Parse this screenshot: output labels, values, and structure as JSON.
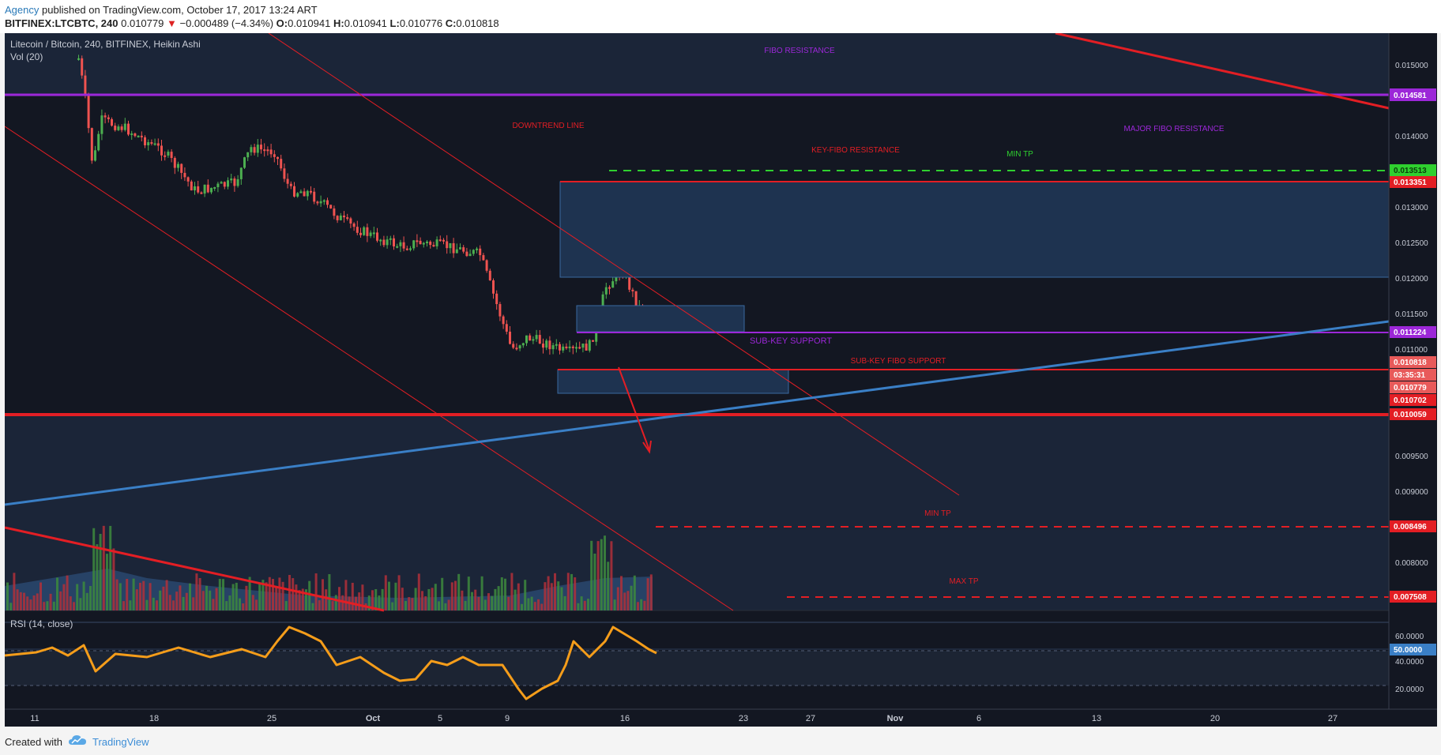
{
  "header": {
    "author": "Agency",
    "published_text": "published on TradingView.com, October 17, 2017 13:24 ART",
    "symbol": "BITFINEX:LTCBTC, 240",
    "last": "0.010779",
    "change_arrow": "▼",
    "change": "−0.000489 (−4.34%)",
    "o_label": "O:",
    "o_value": "0.010941",
    "h_label": "H:",
    "h_value": "0.010941",
    "l_label": "L:",
    "l_value": "0.010776",
    "c_label": "C:",
    "c_value": "0.010818"
  },
  "legend": {
    "title": "Litecoin / Bitcoin, 240, BITFINEX, Heikin Ashi",
    "volume": "Vol (20)",
    "rsi": "RSI (14, close)"
  },
  "annotations": {
    "fibo_resistance": "FIBO RESISTANCE",
    "downtrend_line": "DOWNTREND LINE",
    "key_fibo_resistance": "KEY-FIBO RESISTANCE",
    "min_tp_top": "MIN TP",
    "major_fibo_resistance": "MAJOR FIBO RESISTANCE",
    "sub_key_support": "SUB-KEY SUPPORT",
    "sub_key_fibo_support": "SUB-KEY FIBO SUPPORT",
    "min_tp_bottom": "MIN TP",
    "max_tp": "MAX TP"
  },
  "price_axis": {
    "ticks": [
      "0.015000",
      "0.014000",
      "0.013000",
      "0.012500",
      "0.012000",
      "0.011500",
      "0.011000",
      "0.009500",
      "0.009000",
      "0.008000"
    ],
    "tags": {
      "fibo_resistance": "0.014581",
      "min_tp_top": "0.013513",
      "key_fibo": "0.013351",
      "sub_key_support": "0.011224",
      "close": "0.010818",
      "countdown": "03:35:31",
      "last": "0.010779",
      "sub_key_fibo": "0.010702",
      "support": "0.010059",
      "min_tp_bottom": "0.008496",
      "max_tp": "0.007508"
    }
  },
  "rsi_axis": {
    "ticks": [
      "60.0000",
      "40.0000",
      "20.0000"
    ],
    "current": "50.0000"
  },
  "time_axis": {
    "ticks": [
      "11",
      "18",
      "25",
      "Oct",
      "5",
      "9",
      "16",
      "23",
      "27",
      "Nov",
      "6",
      "13",
      "20",
      "27"
    ]
  },
  "colors": {
    "background": "#131722",
    "purple": "#9c27d8",
    "red": "#e31e24",
    "blue": "#3a7fc6",
    "green": "#2fd02f",
    "rsi": "#f59d1a"
  },
  "footer": {
    "created_with": "Created with",
    "brand": "TradingView"
  }
}
